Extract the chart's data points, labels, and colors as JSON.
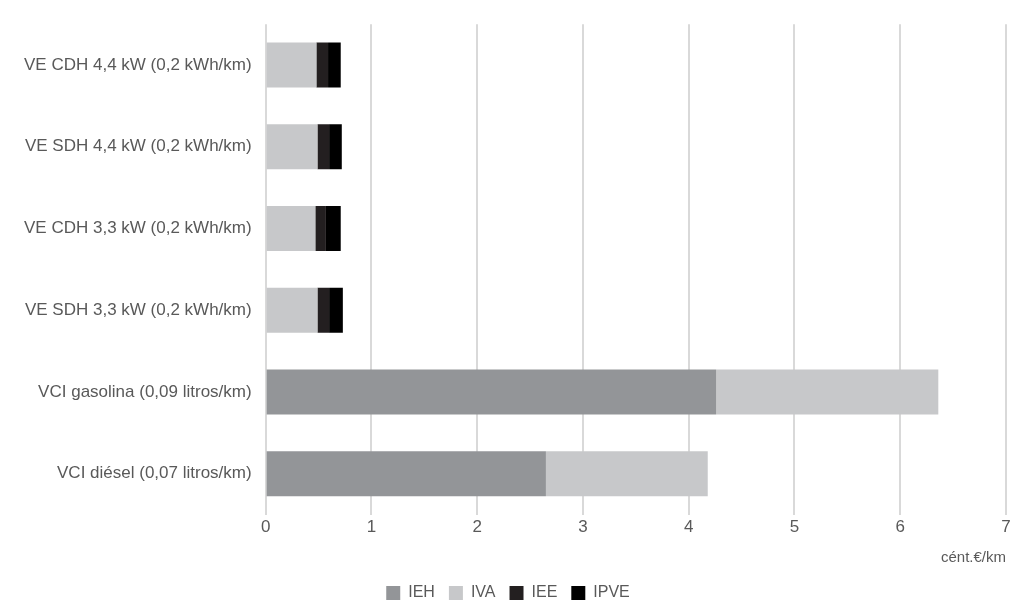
{
  "chart_data": {
    "type": "bar",
    "orientation": "horizontal",
    "stacked": true,
    "categories": [
      "VE CDH 4,4 kW (0,2 kWh/km)",
      "VE SDH 4,4 kW (0,2 kWh/km)",
      "VE CDH 3,3 kW (0,2 kWh/km)",
      "VE SDH 3,3 kW (0,2 kWh/km)",
      "VCI gasolina (0,09 litros/km)",
      "VCI diésel (0,07 litros/km)"
    ],
    "series": [
      {
        "name": "IEH",
        "color": "#939598",
        "values": [
          0,
          0,
          0,
          0,
          4.26,
          2.65
        ]
      },
      {
        "name": "IVA",
        "color": "#c7c8ca",
        "values": [
          0.48,
          0.49,
          0.47,
          0.49,
          2.1,
          1.53
        ]
      },
      {
        "name": "IEE",
        "color": "#231f20",
        "values": [
          0.11,
          0.11,
          0.1,
          0.11,
          0,
          0
        ]
      },
      {
        "name": "IPVE",
        "color": "#000000",
        "values": [
          0.12,
          0.12,
          0.14,
          0.13,
          0,
          0
        ]
      }
    ],
    "xlabel": "cént.€/km",
    "xlim": [
      0,
      7
    ],
    "xticks": [
      0,
      1,
      2,
      3,
      4,
      5,
      6,
      7
    ],
    "grid": "x",
    "legend": "bottom"
  }
}
